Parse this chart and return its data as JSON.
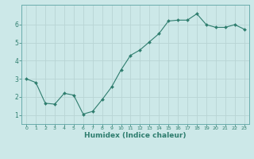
{
  "x": [
    0,
    1,
    2,
    3,
    4,
    5,
    6,
    7,
    8,
    9,
    10,
    11,
    12,
    13,
    14,
    15,
    16,
    17,
    18,
    19,
    20,
    21,
    22,
    23
  ],
  "y": [
    3.0,
    2.8,
    1.65,
    1.6,
    2.2,
    2.1,
    1.05,
    1.2,
    1.85,
    2.55,
    3.5,
    4.3,
    4.6,
    5.05,
    5.5,
    6.2,
    6.25,
    6.25,
    6.6,
    6.0,
    5.85,
    5.85,
    6.0,
    5.75
  ],
  "xlabel": "Humidex (Indice chaleur)",
  "ylabel": "",
  "xlim": [
    -0.5,
    23.5
  ],
  "ylim": [
    0.5,
    7.1
  ],
  "yticks": [
    1,
    2,
    3,
    4,
    5,
    6
  ],
  "xticks": [
    0,
    1,
    2,
    3,
    4,
    5,
    6,
    7,
    8,
    9,
    10,
    11,
    12,
    13,
    14,
    15,
    16,
    17,
    18,
    19,
    20,
    21,
    22,
    23
  ],
  "line_color": "#2e7d6e",
  "marker_color": "#2e7d6e",
  "bg_color": "#cce8e8",
  "grid_color": "#b8d4d4",
  "axis_label_color": "#2e7d6e",
  "tick_label_color": "#2e7d6e",
  "spine_color": "#6aadad"
}
